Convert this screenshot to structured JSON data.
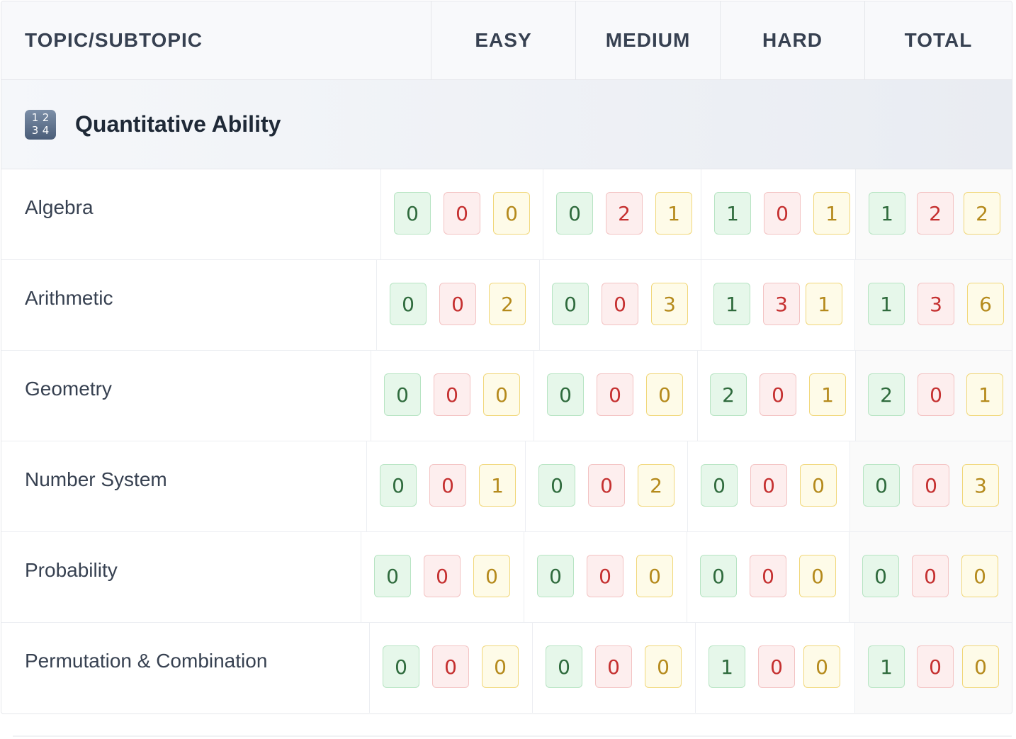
{
  "header": {
    "topic": "TOPIC/SUBTOPIC",
    "easy": "EASY",
    "medium": "MEDIUM",
    "hard": "HARD",
    "total": "TOTAL"
  },
  "topic": {
    "icon": "input-numbers-icon",
    "icon_digits": [
      "1",
      "2",
      "3",
      "4"
    ],
    "title": "Quantitative Ability"
  },
  "colors": {
    "correct": "#2f6b3d",
    "incorrect": "#c53030",
    "skipped": "#b58a1c"
  },
  "subtopics": [
    {
      "name": "Algebra",
      "easy": [
        "0",
        "0",
        "0"
      ],
      "medium": [
        "0",
        "2",
        "1"
      ],
      "hard": [
        "1",
        "0",
        "1"
      ],
      "total": [
        "1",
        "2",
        "2"
      ]
    },
    {
      "name": "Arithmetic",
      "easy": [
        "0",
        "0",
        "2"
      ],
      "medium": [
        "0",
        "0",
        "3"
      ],
      "hard": [
        "1",
        "3",
        "1"
      ],
      "total": [
        "1",
        "3",
        "6"
      ]
    },
    {
      "name": "Geometry",
      "easy": [
        "0",
        "0",
        "0"
      ],
      "medium": [
        "0",
        "0",
        "0"
      ],
      "hard": [
        "2",
        "0",
        "1"
      ],
      "total": [
        "2",
        "0",
        "1"
      ]
    },
    {
      "name": "Number System",
      "easy": [
        "0",
        "0",
        "1"
      ],
      "medium": [
        "0",
        "0",
        "2"
      ],
      "hard": [
        "0",
        "0",
        "0"
      ],
      "total": [
        "0",
        "0",
        "3"
      ]
    },
    {
      "name": "Probability",
      "easy": [
        "0",
        "0",
        "0"
      ],
      "medium": [
        "0",
        "0",
        "0"
      ],
      "hard": [
        "0",
        "0",
        "0"
      ],
      "total": [
        "0",
        "0",
        "0"
      ]
    },
    {
      "name": "Permutation & Combination",
      "easy": [
        "0",
        "0",
        "0"
      ],
      "medium": [
        "0",
        "0",
        "0"
      ],
      "hard": [
        "1",
        "0",
        "0"
      ],
      "total": [
        "1",
        "0",
        "0"
      ]
    }
  ]
}
